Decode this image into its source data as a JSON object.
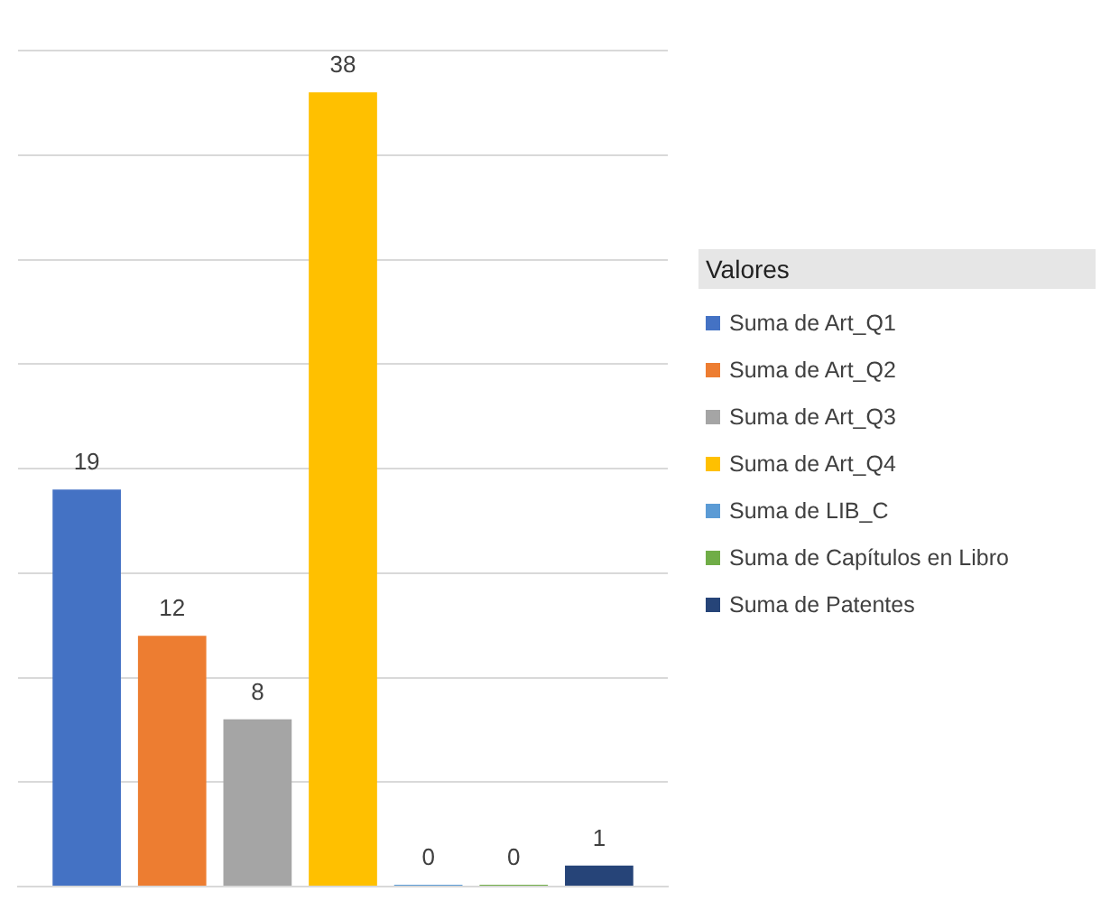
{
  "chart_data": {
    "type": "bar",
    "legend_title": "Valores",
    "categories": [
      null
    ],
    "series": [
      {
        "name": "Suma de Art_Q1",
        "color": "#4472c4",
        "values": [
          19
        ]
      },
      {
        "name": "Suma de Art_Q2",
        "color": "#ed7d31",
        "values": [
          12
        ]
      },
      {
        "name": "Suma de Art_Q3",
        "color": "#a5a5a5",
        "values": [
          8
        ]
      },
      {
        "name": "Suma de Art_Q4",
        "color": "#ffc000",
        "values": [
          38
        ]
      },
      {
        "name": "Suma de LIB_C",
        "color": "#5b9bd5",
        "values": [
          0
        ]
      },
      {
        "name": "Suma de Capítulos en Libro",
        "color": "#70ad47",
        "values": [
          0
        ]
      },
      {
        "name": "Suma de Patentes",
        "color": "#264478",
        "values": [
          1
        ]
      }
    ],
    "ylim": [
      0,
      40
    ],
    "yticks": [
      0,
      5,
      10,
      15,
      20,
      25,
      30,
      35,
      40
    ],
    "tick_labels": false,
    "grid": "y",
    "legend": "right",
    "data_labels": true
  }
}
